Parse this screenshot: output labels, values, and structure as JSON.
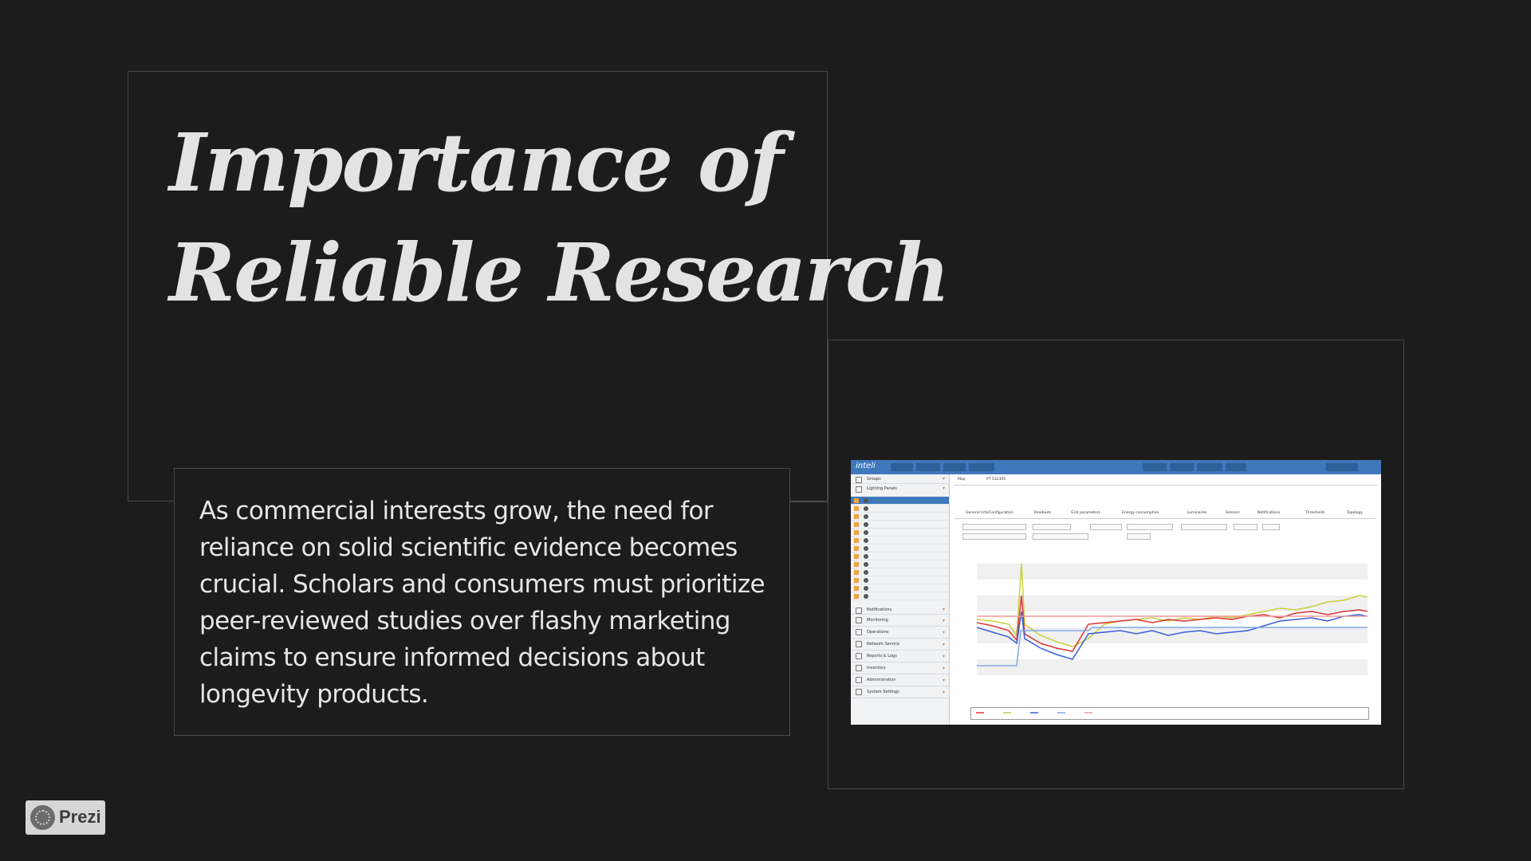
{
  "slide": {
    "title_line1": "Importance of",
    "title_line2": "Reliable Research",
    "body": "As commercial interests grow, the need for reliance on solid scientific evidence becomes crucial. Scholars and consumers must prioritize peer-reviewed studies over flashy marketing claims to ensure informed decisions about longevity products."
  },
  "screenshot": {
    "logo": "inteli",
    "sidebar": {
      "groups": "Groups",
      "panel": "Lighting Panels",
      "items": [
        "Notifications",
        "Monitoring",
        "Operations",
        "Network Service",
        "Reports & Logs",
        "Inventory",
        "Administration",
        "System Settings"
      ]
    },
    "tabs": [
      "Map",
      "PT 532305"
    ],
    "subtabs": [
      "General Info/Configuration",
      "Readouts",
      "Grid parameters",
      "Energy consumption",
      "Luminaires",
      "Sensors",
      "Notifications",
      "Thresholds",
      "Topology"
    ]
  },
  "branding": {
    "label": "Prezi"
  },
  "colors": {
    "background": "#1c1c1c",
    "frame": "#4a4a4a",
    "text": "#e6e6e6",
    "screenshot_header": "#3f78bb",
    "series_red": "#d93636",
    "series_blue": "#3a5fd9",
    "series_yellow": "#c8cf3c",
    "series_lightblue": "#7fa8e6",
    "series_pink": "#f39a9a"
  }
}
